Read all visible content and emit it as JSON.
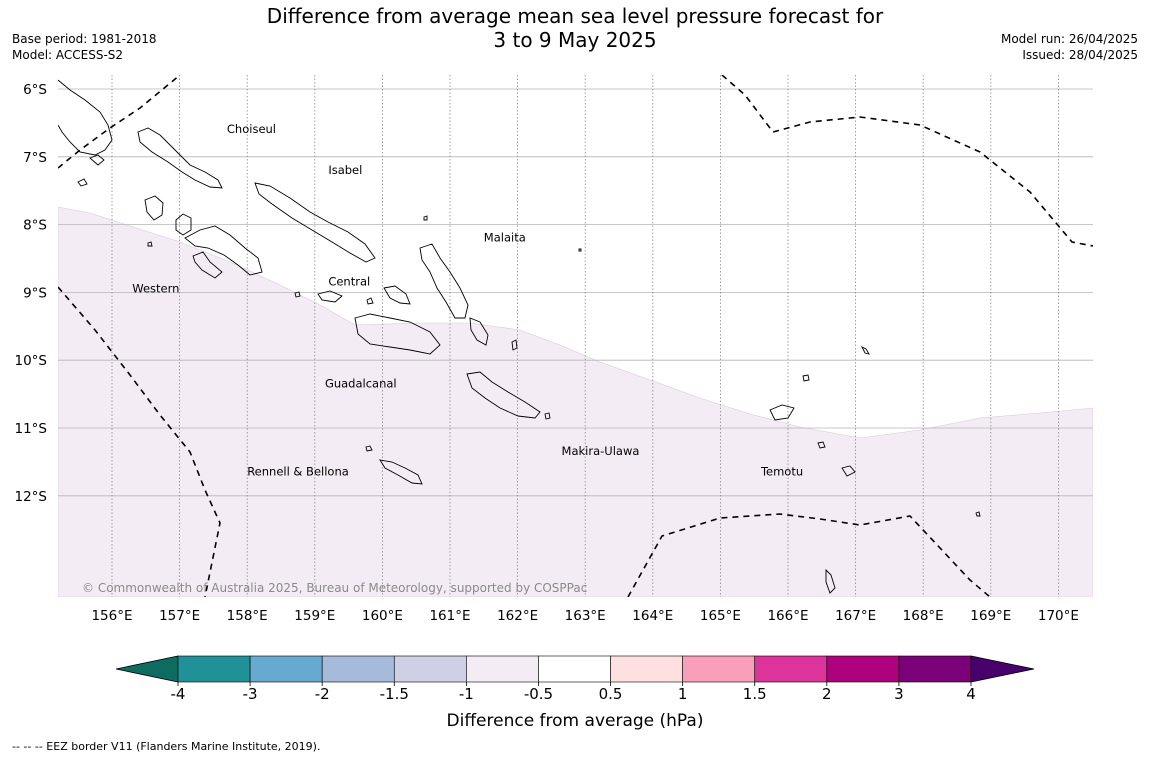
{
  "title": {
    "line1": "Difference from average mean sea level pressure forecast for",
    "line2": "3 to 9 May 2025"
  },
  "meta_left": {
    "base_period": "Base period: 1981-2018",
    "model": "Model: ACCESS-S2"
  },
  "meta_right": {
    "model_run": "Model run: 26/04/2025",
    "issued": "Issued: 28/04/2025"
  },
  "map": {
    "lat_labels": [
      "6°S",
      "7°S",
      "8°S",
      "9°S",
      "10°S",
      "11°S",
      "12°S"
    ],
    "lon_labels": [
      "156°E",
      "157°E",
      "158°E",
      "159°E",
      "160°E",
      "161°E",
      "162°E",
      "163°E",
      "164°E",
      "165°E",
      "166°E",
      "167°E",
      "168°E",
      "169°E",
      "170°E"
    ],
    "places": [
      {
        "name": "Choiseul",
        "lon": 157.7,
        "lat": -6.65
      },
      {
        "name": "Isabel",
        "lon": 159.2,
        "lat": -7.25
      },
      {
        "name": "Malaita",
        "lon": 161.5,
        "lat": -8.25
      },
      {
        "name": "Western",
        "lon": 156.3,
        "lat": -9.0
      },
      {
        "name": "Central",
        "lon": 159.2,
        "lat": -8.9
      },
      {
        "name": "Guadalcanal",
        "lon": 159.15,
        "lat": -10.4
      },
      {
        "name": "Makira-Ulawa",
        "lon": 162.65,
        "lat": -11.4
      },
      {
        "name": "Rennell & Bellona",
        "lon": 158.0,
        "lat": -11.7
      },
      {
        "name": "Temotu",
        "lon": 165.6,
        "lat": -11.7
      }
    ],
    "copyright": "© Commonwealth of Australia 2025, Bureau of Meteorology, supported by COSPPac",
    "shaded_anomaly_range": "-1 to -0.5",
    "shaded_color": "#f4ecf5"
  },
  "colorbar": {
    "title": "Difference from average (hPa)",
    "ticks": [
      "-4",
      "-3",
      "-2",
      "-1.5",
      "-1",
      "-0.5",
      "0.5",
      "1",
      "1.5",
      "2",
      "3",
      "4"
    ],
    "colors": [
      "#0d6b5f",
      "#1f9197",
      "#68a9d0",
      "#a6badb",
      "#cfd0e5",
      "#f4ecf5",
      "#ffffff",
      "#fde0df",
      "#f99fbc",
      "#dc349a",
      "#ad017d",
      "#7a0178",
      "#48006a"
    ]
  },
  "footnote": "--  --  -- EEZ border V11 (Flanders Marine Institute, 2019)."
}
